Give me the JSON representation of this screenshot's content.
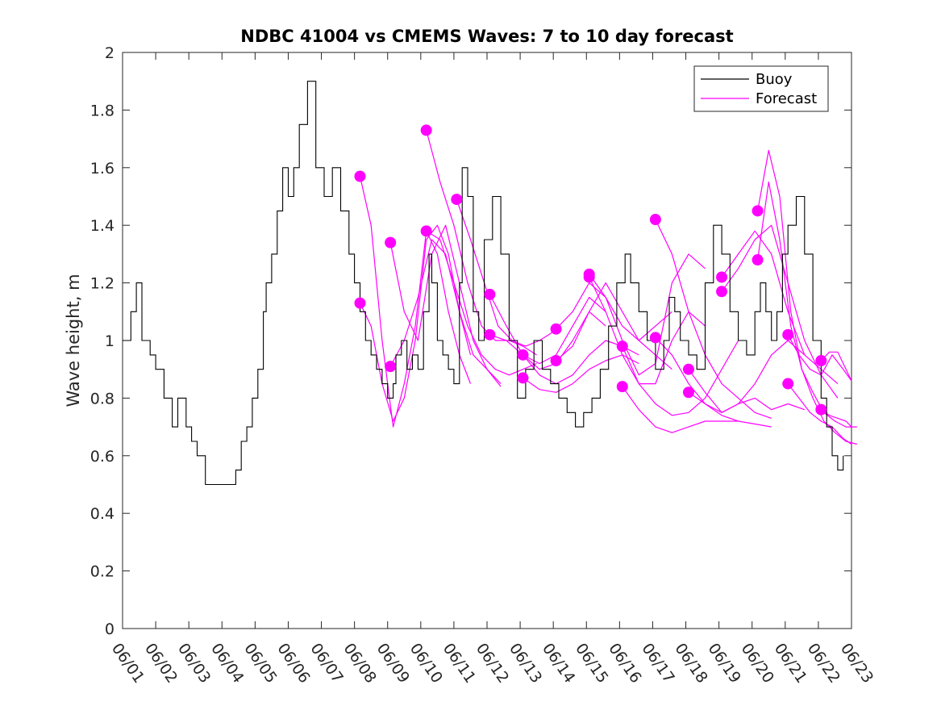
{
  "chart_data": {
    "type": "line",
    "title": "NDBC 41004 vs CMEMS Waves: 7 to 10 day forecast",
    "xlabel": "",
    "ylabel": "Wave height, m",
    "xlim": [
      "06/01",
      "06/23"
    ],
    "ylim": [
      0,
      2
    ],
    "yticks": [
      "0",
      "0.2",
      "0.4",
      "0.6",
      "0.8",
      "1",
      "1.2",
      "1.4",
      "1.6",
      "1.8",
      "2"
    ],
    "xticks": [
      "06/01",
      "06/02",
      "06/03",
      "06/04",
      "06/05",
      "06/06",
      "06/07",
      "06/08",
      "06/09",
      "06/10",
      "06/11",
      "06/12",
      "06/13",
      "06/14",
      "06/15",
      "06/16",
      "06/17",
      "06/18",
      "06/19",
      "06/20",
      "06/21",
      "06/22",
      "06/23"
    ],
    "grid": false,
    "legend": {
      "position": "top-right",
      "entries": [
        "Buoy",
        "Forecast"
      ]
    },
    "colors": {
      "buoy": "#000000",
      "forecast": "#ff00ff"
    },
    "series": [
      {
        "name": "Buoy",
        "x": [
          "06/01 00:00",
          "06/01 06:00",
          "06/01 10:00",
          "06/01 14:00",
          "06/01 20:00",
          "06/02 00:00",
          "06/02 06:00",
          "06/02 12:00",
          "06/02 16:00",
          "06/02 22:00",
          "06/03 02:00",
          "06/03 06:00",
          "06/03 12:00",
          "06/03 18:00",
          "06/04 00:00",
          "06/04 06:00",
          "06/04 10:00",
          "06/04 14:00",
          "06/04 18:00",
          "06/04 22:00",
          "06/05 02:00",
          "06/05 06:00",
          "06/05 08:00",
          "06/05 12:00",
          "06/05 16:00",
          "06/05 20:00",
          "06/06 00:00",
          "06/06 04:00",
          "06/06 08:00",
          "06/06 14:00",
          "06/06 20:00",
          "06/07 02:00",
          "06/07 08:00",
          "06/07 14:00",
          "06/07 20:00",
          "06/08 00:00",
          "06/08 04:00",
          "06/08 08:00",
          "06/08 12:00",
          "06/08 16:00",
          "06/08 20:00",
          "06/09 00:00",
          "06/09 04:00",
          "06/09 06:00",
          "06/09 10:00",
          "06/09 14:00",
          "06/09 18:00",
          "06/09 22:00",
          "06/10 02:00",
          "06/10 06:00",
          "06/10 08:00",
          "06/10 12:00",
          "06/10 16:00",
          "06/10 20:00",
          "06/11 00:00",
          "06/11 04:00",
          "06/11 06:00",
          "06/11 10:00",
          "06/11 14:00",
          "06/11 18:00",
          "06/11 22:00",
          "06/12 04:00",
          "06/12 10:00",
          "06/12 16:00",
          "06/12 22:00",
          "06/13 04:00",
          "06/13 10:00",
          "06/13 16:00",
          "06/13 22:00",
          "06/14 04:00",
          "06/14 10:00",
          "06/14 16:00",
          "06/14 22:00",
          "06/15 04:00",
          "06/15 10:00",
          "06/15 16:00",
          "06/15 22:00",
          "06/16 04:00",
          "06/16 08:00",
          "06/16 14:00",
          "06/16 20:00",
          "06/17 02:00",
          "06/17 08:00",
          "06/17 12:00",
          "06/17 16:00",
          "06/17 20:00",
          "06/18 02:00",
          "06/18 08:00",
          "06/18 14:00",
          "06/18 20:00",
          "06/19 02:00",
          "06/19 08:00",
          "06/19 14:00",
          "06/19 20:00",
          "06/20 02:00",
          "06/20 06:00",
          "06/20 10:00",
          "06/20 14:00",
          "06/20 18:00",
          "06/20 22:00",
          "06/21 02:00",
          "06/21 08:00",
          "06/21 14:00",
          "06/21 20:00",
          "06/22 02:00",
          "06/22 06:00",
          "06/22 10:00",
          "06/22 14:00",
          "06/22 18:00"
        ],
        "values": [
          1.0,
          1.1,
          1.2,
          1.0,
          0.95,
          0.9,
          0.8,
          0.7,
          0.8,
          0.7,
          0.65,
          0.6,
          0.5,
          0.5,
          0.5,
          0.5,
          0.55,
          0.65,
          0.7,
          0.8,
          0.9,
          1.1,
          1.2,
          1.3,
          1.45,
          1.6,
          1.5,
          1.6,
          1.75,
          1.9,
          1.6,
          1.5,
          1.6,
          1.45,
          1.3,
          1.2,
          1.1,
          1.0,
          0.95,
          0.9,
          0.85,
          0.8,
          0.85,
          0.95,
          1.0,
          0.9,
          0.95,
          0.9,
          1.1,
          1.3,
          1.2,
          1.0,
          0.95,
          0.9,
          0.85,
          1.2,
          1.6,
          1.5,
          1.1,
          1.0,
          1.35,
          1.5,
          1.3,
          1.0,
          0.8,
          0.9,
          1.0,
          0.9,
          0.85,
          0.8,
          0.75,
          0.7,
          0.75,
          0.8,
          0.9,
          1.05,
          1.2,
          1.3,
          1.2,
          1.1,
          1.0,
          0.9,
          1.0,
          1.15,
          1.1,
          1.0,
          0.95,
          0.9,
          1.2,
          1.4,
          1.3,
          1.1,
          1.0,
          0.95,
          1.1,
          1.2,
          1.1,
          1.0,
          1.1,
          1.3,
          1.4,
          1.5,
          1.3,
          1.0,
          0.8,
          0.7,
          0.6,
          0.55,
          0.6
        ]
      }
    ],
    "forecast_markers": [
      {
        "x": "06/08 04:00",
        "y": 1.57
      },
      {
        "x": "06/08 04:00",
        "y": 1.13
      },
      {
        "x": "06/09 02:00",
        "y": 1.34
      },
      {
        "x": "06/09 02:00",
        "y": 0.91
      },
      {
        "x": "06/10 04:00",
        "y": 1.73
      },
      {
        "x": "06/10 04:00",
        "y": 1.38
      },
      {
        "x": "06/11 02:00",
        "y": 1.49
      },
      {
        "x": "06/12 02:00",
        "y": 1.16
      },
      {
        "x": "06/12 02:00",
        "y": 1.02
      },
      {
        "x": "06/13 02:00",
        "y": 0.95
      },
      {
        "x": "06/13 02:00",
        "y": 0.87
      },
      {
        "x": "06/14 02:00",
        "y": 1.04
      },
      {
        "x": "06/14 02:00",
        "y": 0.93
      },
      {
        "x": "06/15 02:00",
        "y": 1.23
      },
      {
        "x": "06/15 02:00",
        "y": 1.22
      },
      {
        "x": "06/16 02:00",
        "y": 0.98
      },
      {
        "x": "06/16 02:00",
        "y": 0.84
      },
      {
        "x": "06/17 02:00",
        "y": 1.42
      },
      {
        "x": "06/17 02:00",
        "y": 1.01
      },
      {
        "x": "06/18 02:00",
        "y": 0.9
      },
      {
        "x": "06/18 02:00",
        "y": 0.82
      },
      {
        "x": "06/19 02:00",
        "y": 1.22
      },
      {
        "x": "06/19 02:00",
        "y": 1.17
      },
      {
        "x": "06/20 04:00",
        "y": 1.45
      },
      {
        "x": "06/20 04:00",
        "y": 1.28
      },
      {
        "x": "06/21 02:00",
        "y": 1.02
      },
      {
        "x": "06/21 02:00",
        "y": 0.85
      },
      {
        "x": "06/22 02:00",
        "y": 0.93
      },
      {
        "x": "06/22 02:00",
        "y": 0.76
      }
    ],
    "forecast_tracks": [
      {
        "x": [
          "06/08 04:00",
          "06/08 12:00",
          "06/08 20:00",
          "06/09 04:00",
          "06/09 12:00",
          "06/09 20:00",
          "06/10 04:00",
          "06/10 12:00",
          "06/10 20:00",
          "06/11 04:00",
          "06/11 12:00"
        ],
        "values": [
          1.57,
          1.4,
          1.0,
          0.7,
          0.85,
          1.05,
          1.38,
          1.3,
          1.1,
          0.95,
          0.85
        ]
      },
      {
        "x": [
          "06/08 04:00",
          "06/08 12:00",
          "06/08 20:00",
          "06/09 04:00",
          "06/09 12:00",
          "06/09 20:00",
          "06/10 04:00",
          "06/10 12:00",
          "06/10 20:00",
          "06/11 04:00",
          "06/11 12:00"
        ],
        "values": [
          1.13,
          1.05,
          0.85,
          0.72,
          0.8,
          1.0,
          1.35,
          1.4,
          1.3,
          1.1,
          0.95
        ]
      },
      {
        "x": [
          "06/09 02:00",
          "06/09 12:00",
          "06/09 22:00",
          "06/10 08:00",
          "06/10 18:00",
          "06/11 04:00",
          "06/11 14:00",
          "06/12 00:00",
          "06/12 10:00"
        ],
        "values": [
          1.34,
          1.1,
          1.0,
          1.3,
          1.4,
          1.2,
          1.0,
          0.9,
          0.85
        ]
      },
      {
        "x": [
          "06/09 02:00",
          "06/09 12:00",
          "06/09 22:00",
          "06/10 08:00",
          "06/10 18:00",
          "06/11 04:00",
          "06/11 14:00",
          "06/12 00:00",
          "06/12 10:00"
        ],
        "values": [
          0.91,
          1.0,
          1.15,
          1.35,
          1.3,
          1.1,
          0.95,
          0.9,
          0.84
        ]
      },
      {
        "x": [
          "06/10 04:00",
          "06/10 14:00",
          "06/11 00:00",
          "06/11 10:00",
          "06/11 20:00",
          "06/12 06:00",
          "06/12 16:00",
          "06/13 02:00",
          "06/13 12:00"
        ],
        "values": [
          1.73,
          1.55,
          1.4,
          1.2,
          1.05,
          1.0,
          1.0,
          0.98,
          0.95
        ]
      },
      {
        "x": [
          "06/10 04:00",
          "06/10 14:00",
          "06/11 00:00",
          "06/11 10:00",
          "06/11 20:00",
          "06/12 06:00",
          "06/12 16:00",
          "06/13 02:00",
          "06/13 12:00"
        ],
        "values": [
          1.38,
          1.35,
          1.2,
          1.05,
          0.95,
          0.9,
          0.88,
          0.9,
          0.92
        ]
      },
      {
        "x": [
          "06/11 02:00",
          "06/11 12:00",
          "06/11 22:00",
          "06/12 08:00",
          "06/12 18:00",
          "06/13 04:00",
          "06/13 14:00",
          "06/14 00:00"
        ],
        "values": [
          1.49,
          1.35,
          1.2,
          1.05,
          1.0,
          0.98,
          1.0,
          1.03
        ]
      },
      {
        "x": [
          "06/12 02:00",
          "06/12 14:00",
          "06/13 02:00",
          "06/13 14:00",
          "06/14 02:00",
          "06/14 14:00",
          "06/15 02:00",
          "06/15 14:00"
        ],
        "values": [
          1.16,
          1.05,
          0.95,
          0.92,
          0.95,
          1.05,
          1.15,
          1.1
        ]
      },
      {
        "x": [
          "06/12 02:00",
          "06/12 14:00",
          "06/13 02:00",
          "06/13 14:00",
          "06/14 02:00",
          "06/14 14:00",
          "06/15 02:00",
          "06/15 14:00"
        ],
        "values": [
          1.02,
          1.0,
          0.95,
          0.9,
          0.92,
          1.0,
          1.1,
          1.05
        ]
      },
      {
        "x": [
          "06/13 02:00",
          "06/13 14:00",
          "06/14 02:00",
          "06/14 14:00",
          "06/15 02:00",
          "06/15 14:00",
          "06/16 02:00",
          "06/16 14:00"
        ],
        "values": [
          0.95,
          0.88,
          0.85,
          0.88,
          0.95,
          1.0,
          0.98,
          0.95
        ]
      },
      {
        "x": [
          "06/13 02:00",
          "06/13 14:00",
          "06/14 02:00",
          "06/14 14:00",
          "06/15 02:00",
          "06/15 14:00",
          "06/16 02:00",
          "06/16 14:00"
        ],
        "values": [
          0.87,
          0.83,
          0.82,
          0.85,
          0.9,
          0.93,
          0.95,
          0.92
        ]
      },
      {
        "x": [
          "06/14 02:00",
          "06/14 14:00",
          "06/15 02:00",
          "06/15 14:00",
          "06/16 02:00",
          "06/16 14:00",
          "06/17 02:00",
          "06/17 14:00"
        ],
        "values": [
          1.04,
          1.1,
          1.2,
          1.15,
          1.05,
          1.0,
          1.05,
          1.1
        ]
      },
      {
        "x": [
          "06/14 02:00",
          "06/14 14:00",
          "06/15 02:00",
          "06/15 14:00",
          "06/16 02:00",
          "06/16 14:00",
          "06/17 02:00",
          "06/17 14:00"
        ],
        "values": [
          0.93,
          0.98,
          1.1,
          1.2,
          1.1,
          1.0,
          0.95,
          0.9
        ]
      },
      {
        "x": [
          "06/15 02:00",
          "06/15 14:00",
          "06/16 02:00",
          "06/16 14:00",
          "06/17 02:00",
          "06/17 14:00",
          "06/18 02:00",
          "06/18 14:00"
        ],
        "values": [
          1.23,
          1.15,
          1.0,
          0.88,
          0.92,
          1.2,
          1.3,
          1.25
        ]
      },
      {
        "x": [
          "06/15 02:00",
          "06/15 14:00",
          "06/16 02:00",
          "06/16 14:00",
          "06/17 02:00",
          "06/17 14:00",
          "06/18 02:00",
          "06/18 14:00"
        ],
        "values": [
          1.22,
          1.1,
          0.95,
          0.85,
          0.85,
          1.0,
          1.1,
          1.05
        ]
      },
      {
        "x": [
          "06/16 02:00",
          "06/16 14:00",
          "06/17 02:00",
          "06/17 14:00",
          "06/18 02:00",
          "06/18 14:00",
          "06/19 02:00",
          "06/19 14:00"
        ],
        "values": [
          0.98,
          0.85,
          0.78,
          0.74,
          0.75,
          0.8,
          0.9,
          1.0
        ]
      },
      {
        "x": [
          "06/16 02:00",
          "06/16 14:00",
          "06/17 02:00",
          "06/17 14:00",
          "06/18 02:00",
          "06/18 14:00",
          "06/19 02:00",
          "06/19 14:00"
        ],
        "values": [
          0.84,
          0.76,
          0.7,
          0.68,
          0.7,
          0.72,
          0.72,
          0.72
        ]
      },
      {
        "x": [
          "06/17 02:00",
          "06/17 14:00",
          "06/18 02:00",
          "06/18 14:00",
          "06/19 02:00",
          "06/19 14:00",
          "06/20 02:00",
          "06/20 14:00"
        ],
        "values": [
          1.42,
          1.3,
          1.1,
          0.95,
          0.85,
          0.8,
          0.75,
          0.73
        ]
      },
      {
        "x": [
          "06/17 02:00",
          "06/17 14:00",
          "06/18 02:00",
          "06/18 14:00",
          "06/19 02:00",
          "06/19 14:00",
          "06/20 02:00",
          "06/20 14:00"
        ],
        "values": [
          1.01,
          0.95,
          0.85,
          0.78,
          0.74,
          0.72,
          0.71,
          0.7
        ]
      },
      {
        "x": [
          "06/18 02:00",
          "06/18 14:00",
          "06/19 02:00",
          "06/19 14:00",
          "06/20 02:00",
          "06/20 14:00",
          "06/21 02:00",
          "06/21 14:00"
        ],
        "values": [
          0.9,
          0.82,
          0.75,
          0.78,
          0.85,
          0.95,
          1.0,
          0.95
        ]
      },
      {
        "x": [
          "06/18 02:00",
          "06/18 14:00",
          "06/19 02:00",
          "06/19 14:00",
          "06/20 02:00",
          "06/20 14:00",
          "06/21 02:00",
          "06/21 14:00"
        ],
        "values": [
          0.82,
          0.78,
          0.75,
          0.78,
          0.8,
          0.76,
          0.78,
          0.76
        ]
      },
      {
        "x": [
          "06/19 02:00",
          "06/19 14:00",
          "06/20 02:00",
          "06/20 14:00",
          "06/21 02:00",
          "06/21 14:00",
          "06/22 02:00",
          "06/22 14:00"
        ],
        "values": [
          1.22,
          1.3,
          1.38,
          1.3,
          1.1,
          0.95,
          0.9,
          0.85
        ]
      },
      {
        "x": [
          "06/19 02:00",
          "06/19 14:00",
          "06/20 02:00",
          "06/20 14:00",
          "06/21 02:00",
          "06/21 14:00",
          "06/22 02:00",
          "06/22 14:00"
        ],
        "values": [
          1.17,
          1.25,
          1.35,
          1.4,
          1.2,
          1.0,
          0.88,
          0.8
        ]
      },
      {
        "x": [
          "06/20 04:00",
          "06/20 12:00",
          "06/20 20:00",
          "06/21 04:00",
          "06/21 12:00",
          "06/21 20:00",
          "06/22 04:00",
          "06/22 12:00",
          "06/22 20:00",
          "06/23 04:00"
        ],
        "values": [
          1.45,
          1.66,
          1.5,
          1.1,
          0.9,
          0.8,
          0.72,
          0.68,
          0.65,
          0.64
        ]
      },
      {
        "x": [
          "06/20 04:00",
          "06/20 12:00",
          "06/20 20:00",
          "06/21 04:00",
          "06/21 12:00",
          "06/21 20:00",
          "06/22 04:00",
          "06/22 12:00",
          "06/22 20:00",
          "06/23 04:00"
        ],
        "values": [
          1.28,
          1.55,
          1.35,
          1.05,
          0.9,
          0.82,
          0.75,
          0.72,
          0.7,
          0.7
        ]
      },
      {
        "x": [
          "06/21 02:00",
          "06/21 10:00",
          "06/21 18:00",
          "06/22 02:00",
          "06/22 10:00",
          "06/22 18:00",
          "06/23 00:00"
        ],
        "values": [
          1.02,
          0.95,
          0.9,
          0.88,
          0.95,
          0.9,
          0.86
        ]
      },
      {
        "x": [
          "06/21 02:00",
          "06/21 10:00",
          "06/21 18:00",
          "06/22 02:00",
          "06/22 10:00",
          "06/22 18:00",
          "06/23 00:00"
        ],
        "values": [
          0.85,
          0.8,
          0.75,
          0.72,
          0.7,
          0.66,
          0.64
        ]
      },
      {
        "x": [
          "06/22 02:00",
          "06/22 08:00",
          "06/22 14:00",
          "06/22 20:00",
          "06/23 00:00"
        ],
        "values": [
          0.93,
          0.96,
          0.96,
          0.9,
          0.86
        ]
      },
      {
        "x": [
          "06/22 02:00",
          "06/22 08:00",
          "06/22 14:00",
          "06/22 20:00",
          "06/23 00:00"
        ],
        "values": [
          0.76,
          0.74,
          0.73,
          0.72,
          0.7
        ]
      }
    ]
  }
}
